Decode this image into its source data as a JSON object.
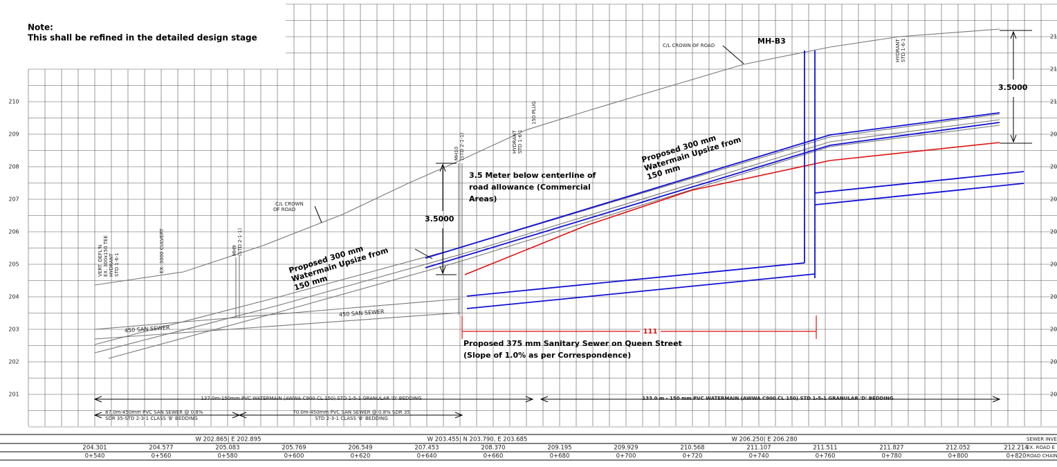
{
  "note": {
    "title": "Note:",
    "text": "This shall be refined in the detailed design stage"
  },
  "elevation_labels": [
    210,
    209,
    208,
    207,
    206,
    205,
    204,
    203,
    202,
    201
  ],
  "right_labels": [
    "21",
    "21",
    "21",
    "20",
    "20",
    "20",
    "20",
    "20",
    "20",
    "20",
    "20",
    "20"
  ],
  "annotations": {
    "crown_top": "C/L CROWN OF ROAD",
    "manhole_b3": "MH-B3",
    "hydrant_right": [
      "HYDRANT",
      "STD 1-6-1"
    ],
    "dim_right": "3.5000",
    "dim_left": "3.5000",
    "watermain_right": [
      "Proposed 300 mm",
      "Watermain Upsize from",
      "150 mm"
    ],
    "watermain_left": [
      "Proposed 300 mm",
      "Watermain Upsize from",
      "150 mm"
    ],
    "depth_note": [
      "3.5 Meter below centerline of",
      "road allowance (Commercial",
      "Areas)"
    ],
    "mh10": [
      "MH10",
      "(STD 2-1-1)"
    ],
    "hydrant_mid": [
      "HYDRANT",
      "STD 1-6-1"
    ],
    "plug": "150 PLUG",
    "crown_mid": [
      "C/L CROWN",
      "OF ROAD"
    ],
    "culvert": "EX. 3000 CULVERT",
    "mh9": [
      "MH9",
      "(STD 2-1-1)"
    ],
    "hydrant_left": [
      "VERT. DEFL'N",
      "EX. 300x150 TEE",
      "HYDRANT",
      "STD 1-6-1"
    ],
    "san_sewer_left": "450 SAN SEWER",
    "san_sewer_mid": "450 SAN SEWER",
    "dim_red": "111",
    "sewer_note": [
      "Proposed 375 mm Sanitary Sewer on Queen Street",
      "(Slope of 1.0% as per Correspondence)"
    ]
  },
  "bands": {
    "watermain_left": "137.0m-150mm PVC WATERMAIN (AWWA C900 CL 150) STD 1-5-1 GRANULAR 'D' BEDDING",
    "watermain_right": "133.0 m - 150 mm PVC WATERMAIN (AWWA C900 CL 150) STD 1-5-1 GRANULAR 'D' BEDDING",
    "sewer_left": [
      "87.0m-450mm PVC SAN SEWER @ 0.8%",
      "SDR 35-STD 2-3-1 CLASS 'B' BEDDING"
    ],
    "sewer_right": [
      "70.0m-450mm PVC SAN SEWER @ 0.8% SDR 35",
      "STD 2-3-1 CLASS 'B' BEDDING"
    ]
  },
  "table": {
    "inverts": [
      "W 202.865| E 202.895",
      "W 203.455| N 203.790, E 203.685",
      "W 206.250| E 206.280"
    ],
    "road_elevations": [
      "204.301",
      "204.577",
      "205.083",
      "205.769",
      "206.549",
      "207.453",
      "208.370",
      "209.195",
      "209.929",
      "210.568",
      "211.107",
      "211.511",
      "211.827",
      "212.052",
      "212.214"
    ],
    "chainages": [
      "0+540",
      "0+560",
      "0+580",
      "0+600",
      "0+620",
      "0+640",
      "0+660",
      "0+680",
      "0+700",
      "0+720",
      "0+740",
      "0+760",
      "0+780",
      "0+800",
      "0+820"
    ],
    "row_titles": [
      "SEWER INVE",
      "EX. ROAD E",
      "ROAD CHAIN"
    ]
  }
}
